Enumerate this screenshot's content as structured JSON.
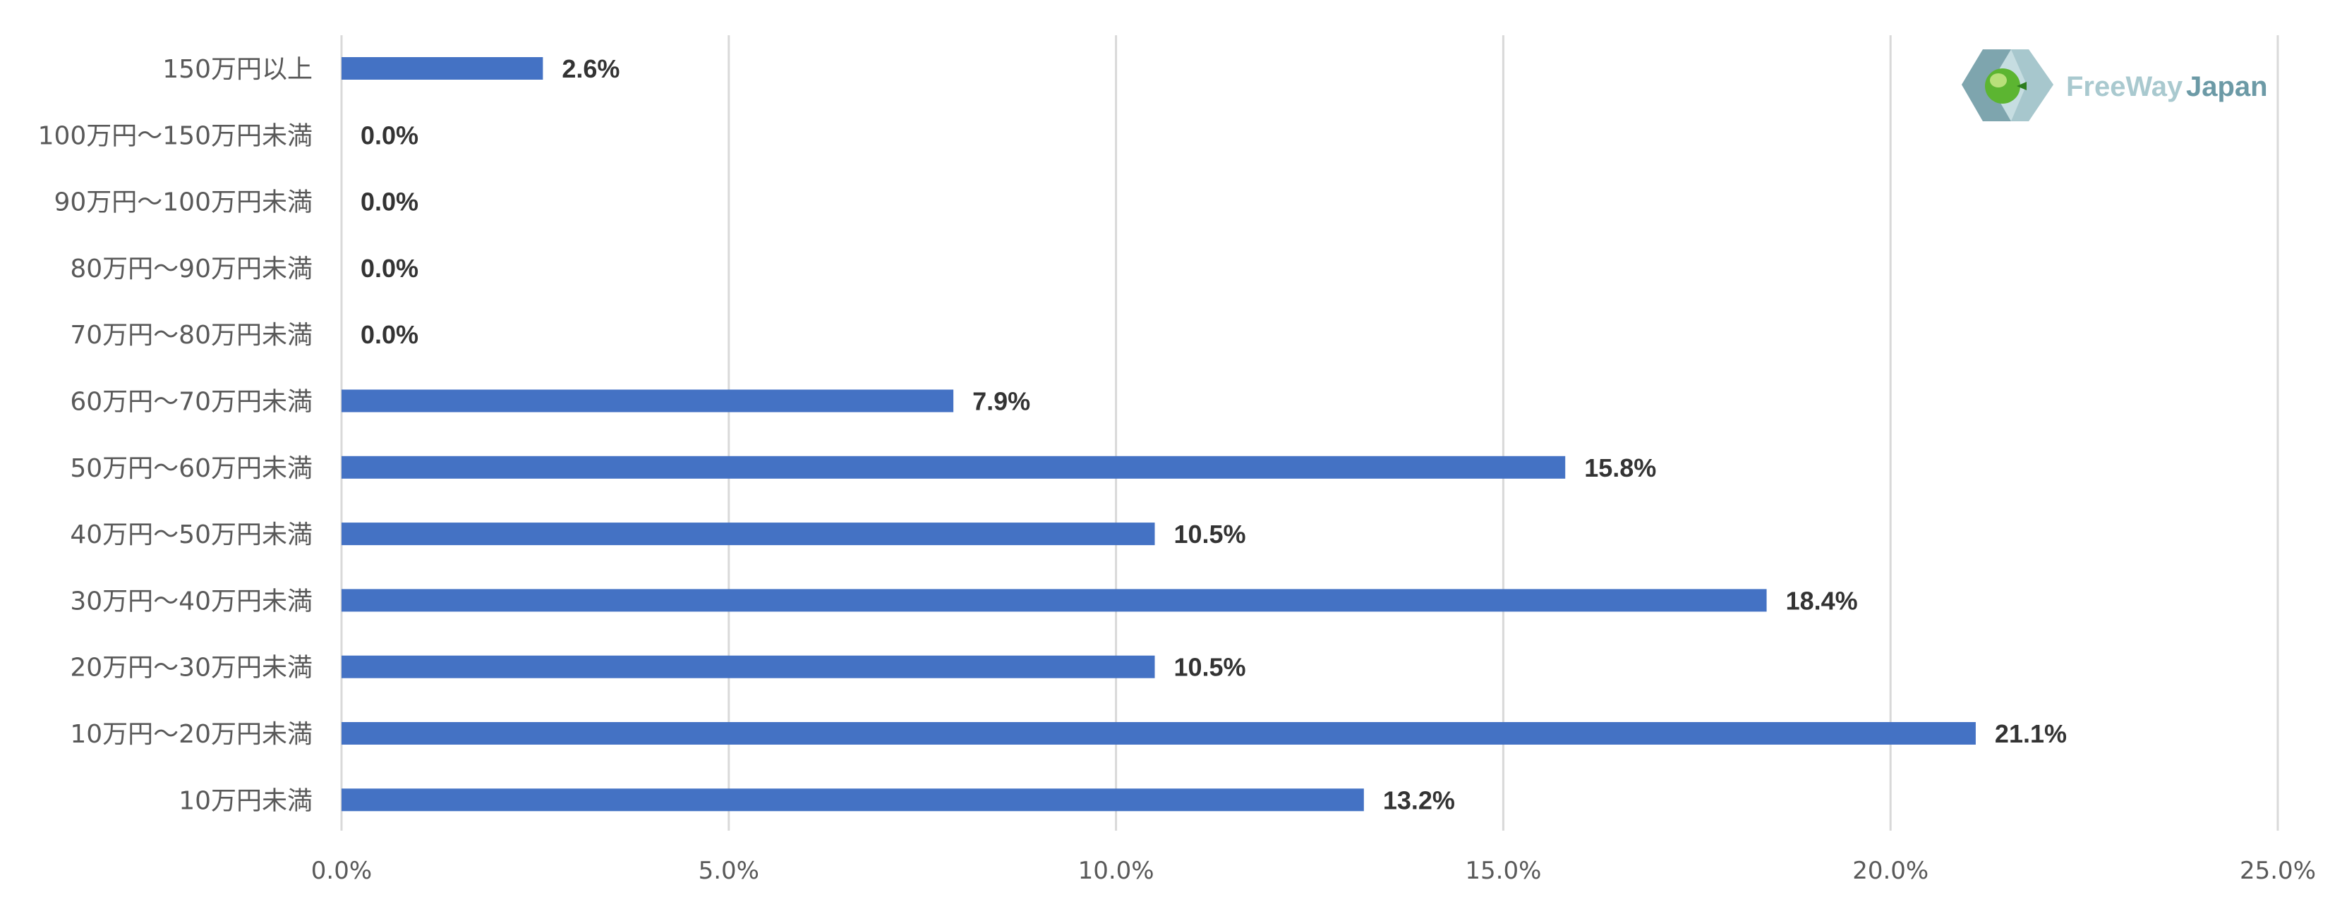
{
  "chart_data": {
    "type": "bar",
    "orientation": "horizontal",
    "categories": [
      "150万円以上",
      "100万円～150万円未満",
      "90万円～100万円未満",
      "80万円～90万円未満",
      "70万円～80万円未満",
      "60万円～70万円未満",
      "50万円～60万円未満",
      "40万円～50万円未満",
      "30万円～40万円未満",
      "20万円～30万円未満",
      "10万円～20万円未満",
      "10万円未満"
    ],
    "values": [
      2.6,
      0.0,
      0.0,
      0.0,
      0.0,
      7.9,
      15.8,
      10.5,
      18.4,
      10.5,
      21.1,
      13.2
    ],
    "data_labels": [
      "2.6%",
      "0.0%",
      "0.0%",
      "0.0%",
      "0.0%",
      "7.9%",
      "15.8%",
      "10.5%",
      "18.4%",
      "10.5%",
      "21.1%",
      "13.2%"
    ],
    "xlim": [
      0,
      25
    ],
    "xticks": [
      "0.0%",
      "5.0%",
      "10.0%",
      "15.0%",
      "20.0%",
      "25.0%"
    ],
    "grid": true,
    "bar_color": "#4472c4",
    "title": "",
    "xlabel": "",
    "ylabel": ""
  },
  "logo": {
    "text_part1": "FreeWay",
    "text_part2": "Japan"
  }
}
